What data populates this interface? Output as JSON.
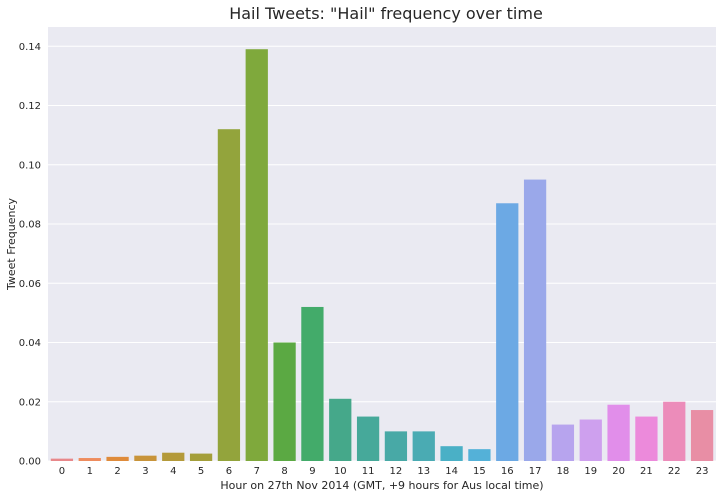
{
  "chart_data": {
    "type": "bar",
    "title": "Hail Tweets: \"Hail\" frequency over time",
    "xlabel": "Hour on 27th Nov 2014 (GMT, +9 hours for Aus local time)",
    "ylabel": "Tweet Frequency",
    "categories": [
      "0",
      "1",
      "2",
      "3",
      "4",
      "5",
      "6",
      "7",
      "8",
      "9",
      "10",
      "11",
      "12",
      "13",
      "14",
      "15",
      "16",
      "17",
      "18",
      "19",
      "20",
      "21",
      "22",
      "23"
    ],
    "values": [
      0.0008,
      0.001,
      0.0014,
      0.0018,
      0.0028,
      0.0025,
      0.112,
      0.139,
      0.04,
      0.052,
      0.021,
      0.015,
      0.01,
      0.01,
      0.005,
      0.004,
      0.087,
      0.095,
      0.0123,
      0.014,
      0.019,
      0.015,
      0.02,
      0.0172
    ],
    "ylim": [
      0,
      0.1465
    ],
    "yticks": [
      "0.00",
      "0.02",
      "0.04",
      "0.06",
      "0.08",
      "0.10",
      "0.12",
      "0.14"
    ],
    "grid": true,
    "colors": [
      "#e8888b",
      "#ee8c5e",
      "#df8b3b",
      "#c8943a",
      "#b49a3a",
      "#a49f3b",
      "#93a43c",
      "#7fa93c",
      "#5ba943",
      "#43ab6a",
      "#45a88a",
      "#46a99a",
      "#48a9a6",
      "#4aabb3",
      "#4ab0c6",
      "#54b1d8",
      "#6ca9e4",
      "#9aa8ea",
      "#b7a4ee",
      "#cea0ee",
      "#e18eea",
      "#ec8adb",
      "#ec8cba",
      "#e88ea5"
    ],
    "plot_bg": "#eaeaf2"
  }
}
